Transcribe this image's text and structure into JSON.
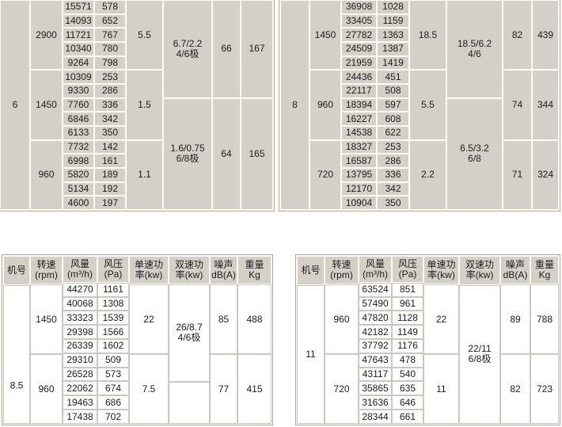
{
  "page": {
    "background": "#ffffff"
  },
  "colors": {
    "page_bg": "#ffffff",
    "text": "#1c1c1c",
    "top_cell_bg": "#d4d0c8",
    "top_grid": "#fffbf0",
    "top_outer": "#b2aa94",
    "bottom_cell_bg": "#ffffff",
    "bottom_grid": "#ccc8bf",
    "bottom_outer": "#aaa69e",
    "head_cell_bg": "#d4d0c8",
    "head_grid": "#fffbf0"
  },
  "tables": [
    {
      "id": "top_left",
      "name": "fan-spec-table-size-6",
      "machine_no": "6",
      "columns": [
        {
          "key": "machine-no",
          "cells": [
            {
              "t": "6",
              "span": 15
            }
          ]
        },
        {
          "key": "speed-rpm",
          "cells": [
            {
              "t": "2900",
              "span": 5
            },
            {
              "t": "1450",
              "span": 5
            },
            {
              "t": "960",
              "span": 5
            }
          ]
        },
        {
          "key": "air-volume",
          "cells": [
            {
              "t": "15571"
            },
            {
              "t": "14093"
            },
            {
              "t": "11721"
            },
            {
              "t": "10340"
            },
            {
              "t": "9264"
            },
            {
              "t": "10309"
            },
            {
              "t": "9330"
            },
            {
              "t": "7760"
            },
            {
              "t": "6846"
            },
            {
              "t": "6133"
            },
            {
              "t": "7732"
            },
            {
              "t": "6998"
            },
            {
              "t": "5820"
            },
            {
              "t": "5134"
            },
            {
              "t": "4600"
            }
          ]
        },
        {
          "key": "pressure",
          "cells": [
            {
              "t": "578"
            },
            {
              "t": "652"
            },
            {
              "t": "767"
            },
            {
              "t": "780"
            },
            {
              "t": "798"
            },
            {
              "t": "253"
            },
            {
              "t": "286"
            },
            {
              "t": "336"
            },
            {
              "t": "342"
            },
            {
              "t": "350"
            },
            {
              "t": "142"
            },
            {
              "t": "161"
            },
            {
              "t": "189"
            },
            {
              "t": "192"
            },
            {
              "t": "197"
            }
          ]
        },
        {
          "key": "single-power",
          "cells": [
            {
              "t": "5.5",
              "span": 5
            },
            {
              "t": "1.5",
              "span": 5
            },
            {
              "t": "1.1",
              "span": 5
            }
          ]
        },
        {
          "key": "dual-power",
          "cells": [
            {
              "lines": [
                "6.7/2.2",
                "4/6极"
              ],
              "span": 7
            },
            {
              "lines": [
                "1.6/0.75",
                "6/8极"
              ],
              "span": 8
            }
          ]
        },
        {
          "key": "noise",
          "cells": [
            {
              "t": "66",
              "span": 7
            },
            {
              "t": "64",
              "span": 8
            }
          ]
        },
        {
          "key": "weight",
          "cells": [
            {
              "t": "167",
              "span": 7
            },
            {
              "t": "165",
              "span": 8
            }
          ]
        }
      ]
    },
    {
      "id": "top_right",
      "name": "fan-spec-table-size-8",
      "machine_no": "8",
      "columns": [
        {
          "key": "machine-no",
          "cells": [
            {
              "t": "8",
              "span": 15
            }
          ]
        },
        {
          "key": "speed-rpm",
          "cells": [
            {
              "t": "1450",
              "span": 5
            },
            {
              "t": "960",
              "span": 5
            },
            {
              "t": "720",
              "span": 5
            }
          ]
        },
        {
          "key": "air-volume",
          "cells": [
            {
              "t": "36908"
            },
            {
              "t": "33405"
            },
            {
              "t": "27782"
            },
            {
              "t": "24509"
            },
            {
              "t": "21959"
            },
            {
              "t": "24436"
            },
            {
              "t": "22117"
            },
            {
              "t": "18394"
            },
            {
              "t": "16227"
            },
            {
              "t": "14538"
            },
            {
              "t": "18327"
            },
            {
              "t": "16587"
            },
            {
              "t": "13795"
            },
            {
              "t": "12170"
            },
            {
              "t": "10904"
            }
          ]
        },
        {
          "key": "pressure",
          "cells": [
            {
              "t": "1028"
            },
            {
              "t": "1159"
            },
            {
              "t": "1363"
            },
            {
              "t": "1387"
            },
            {
              "t": "1419"
            },
            {
              "t": "451"
            },
            {
              "t": "508"
            },
            {
              "t": "597"
            },
            {
              "t": "608"
            },
            {
              "t": "622"
            },
            {
              "t": "253"
            },
            {
              "t": "286"
            },
            {
              "t": "336"
            },
            {
              "t": "342"
            },
            {
              "t": "350"
            }
          ]
        },
        {
          "key": "single-power",
          "cells": [
            {
              "t": "18.5",
              "span": 5
            },
            {
              "t": "5.5",
              "span": 5
            },
            {
              "t": "2.2",
              "span": 5
            }
          ]
        },
        {
          "key": "dual-power",
          "cells": [
            {
              "lines": [
                "18.5/6.2",
                "4/6"
              ],
              "span": 7
            },
            {
              "lines": [
                "6.5/3.2",
                "6/8"
              ],
              "span": 8
            }
          ]
        },
        {
          "key": "noise",
          "cells": [
            {
              "t": "82",
              "span": 5
            },
            {
              "t": "74",
              "span": 5
            },
            {
              "t": "71",
              "span": 5
            }
          ]
        },
        {
          "key": "weight",
          "cells": [
            {
              "t": "439",
              "span": 5
            },
            {
              "t": "344",
              "span": 5
            },
            {
              "t": "324",
              "span": 5
            }
          ]
        }
      ]
    },
    {
      "id": "bottom_left",
      "name": "fan-spec-table-size-8-5",
      "machine_no": "8.5",
      "columns": [
        {
          "key": "machine-no",
          "cells": [
            {
              "lines": [
                "机号"
              ],
              "span": 2,
              "head": true
            },
            {
              "t": "8.5",
              "span": 10,
              "low": true
            }
          ]
        },
        {
          "key": "speed-rpm",
          "cells": [
            {
              "lines": [
                "转速",
                "(rpm)"
              ],
              "span": 2,
              "head": true
            },
            {
              "t": "1450",
              "span": 5
            },
            {
              "t": "960",
              "span": 5
            }
          ]
        },
        {
          "key": "air-volume",
          "cells": [
            {
              "lines": [
                "风量",
                "(m³/h)"
              ],
              "span": 2,
              "head": true
            },
            {
              "t": "44270"
            },
            {
              "t": "40068"
            },
            {
              "t": "33323"
            },
            {
              "t": "29398"
            },
            {
              "t": "26339"
            },
            {
              "t": "29310"
            },
            {
              "t": "26528"
            },
            {
              "t": "22062"
            },
            {
              "t": "19463"
            },
            {
              "t": "17438"
            }
          ]
        },
        {
          "key": "pressure",
          "cells": [
            {
              "lines": [
                "风压",
                "(Pa)"
              ],
              "span": 2,
              "head": true
            },
            {
              "t": "1161"
            },
            {
              "t": "1308"
            },
            {
              "t": "1539"
            },
            {
              "t": "1566"
            },
            {
              "t": "1602"
            },
            {
              "t": "509"
            },
            {
              "t": "573"
            },
            {
              "t": "674"
            },
            {
              "t": "686"
            },
            {
              "t": "702"
            }
          ]
        },
        {
          "key": "single-power",
          "cells": [
            {
              "lines": [
                "单速功",
                "率(kw)"
              ],
              "span": 2,
              "head": true
            },
            {
              "t": "22",
              "span": 5
            },
            {
              "t": "7.5",
              "span": 5
            }
          ]
        },
        {
          "key": "dual-power",
          "cells": [
            {
              "lines": [
                "双速功",
                "率(kw)"
              ],
              "span": 2,
              "head": true
            },
            {
              "lines": [
                "26/8.7",
                "4/6极"
              ],
              "span": 7
            },
            {
              "t": "",
              "span": 3
            }
          ]
        },
        {
          "key": "noise",
          "cells": [
            {
              "lines": [
                "噪声",
                "dB(A)"
              ],
              "span": 2,
              "head": true
            },
            {
              "t": "85",
              "span": 5
            },
            {
              "t": "77",
              "span": 5
            }
          ]
        },
        {
          "key": "weight",
          "cells": [
            {
              "lines": [
                "重量",
                "Kg"
              ],
              "span": 2,
              "head": true
            },
            {
              "t": "488",
              "span": 5
            },
            {
              "t": "415",
              "span": 5
            }
          ]
        }
      ]
    },
    {
      "id": "bottom_right",
      "name": "fan-spec-table-size-11",
      "machine_no": "11",
      "columns": [
        {
          "key": "machine-no",
          "cells": [
            {
              "lines": [
                "机号"
              ],
              "span": 2,
              "head": true
            },
            {
              "t": "11",
              "span": 10
            }
          ]
        },
        {
          "key": "speed-rpm",
          "cells": [
            {
              "lines": [
                "转速",
                "(rpm)"
              ],
              "span": 2,
              "head": true
            },
            {
              "t": "960",
              "span": 5
            },
            {
              "t": "720",
              "span": 5
            }
          ]
        },
        {
          "key": "air-volume",
          "cells": [
            {
              "lines": [
                "风量",
                "(m³/h)"
              ],
              "span": 2,
              "head": true
            },
            {
              "t": "63524"
            },
            {
              "t": "57490"
            },
            {
              "t": "47820"
            },
            {
              "t": "42182"
            },
            {
              "t": "37792"
            },
            {
              "t": "47643"
            },
            {
              "t": "43117"
            },
            {
              "t": "35865"
            },
            {
              "t": "31636"
            },
            {
              "t": "28344"
            }
          ]
        },
        {
          "key": "pressure",
          "cells": [
            {
              "lines": [
                "风压",
                "(Pa)"
              ],
              "span": 2,
              "head": true
            },
            {
              "t": "851"
            },
            {
              "t": "961"
            },
            {
              "t": "1128"
            },
            {
              "t": "1149"
            },
            {
              "t": "1176"
            },
            {
              "t": "478"
            },
            {
              "t": "540"
            },
            {
              "t": "635"
            },
            {
              "t": "646"
            },
            {
              "t": "661"
            }
          ]
        },
        {
          "key": "single-power",
          "cells": [
            {
              "lines": [
                "单速功",
                "率(kw)"
              ],
              "span": 2,
              "head": true
            },
            {
              "t": "22",
              "span": 5
            },
            {
              "t": "11",
              "span": 5
            }
          ]
        },
        {
          "key": "dual-power",
          "cells": [
            {
              "lines": [
                "双速功",
                "率(kw)"
              ],
              "span": 2,
              "head": true
            },
            {
              "lines": [
                "22/11",
                "6/8极"
              ],
              "span": 10
            }
          ]
        },
        {
          "key": "noise",
          "cells": [
            {
              "lines": [
                "噪声",
                "dB(A)"
              ],
              "span": 2,
              "head": true
            },
            {
              "t": "89",
              "span": 5
            },
            {
              "t": "82",
              "span": 5
            }
          ]
        },
        {
          "key": "weight",
          "cells": [
            {
              "lines": [
                "重量",
                "Kg"
              ],
              "span": 2,
              "head": true
            },
            {
              "t": "788",
              "span": 5
            },
            {
              "t": "723",
              "span": 5
            }
          ]
        }
      ]
    }
  ]
}
